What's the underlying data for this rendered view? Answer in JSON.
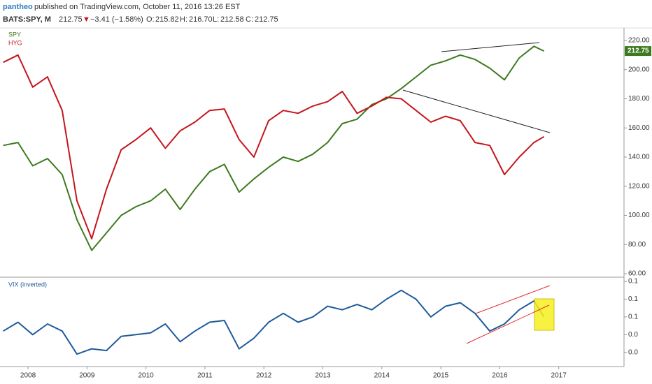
{
  "header": {
    "user": "pantheo",
    "published": "published on TradingView.com, October 11, 2016 13:26 EST",
    "symbol": "BATS:SPY, M",
    "price": "212.75",
    "arrow": "▼",
    "change": "−3.41 (−1.58%)",
    "open_label": "O:",
    "open": "215.82",
    "high_label": "H:",
    "high": "216.70",
    "low_label": "L:",
    "low": "212.58",
    "close_label": "C:",
    "close": "212.75"
  },
  "chart_data": [
    {
      "type": "line",
      "x": [
        2007.58,
        2007.83,
        2008.08,
        2008.33,
        2008.58,
        2008.83,
        2009.08,
        2009.33,
        2009.58,
        2009.83,
        2010.08,
        2010.33,
        2010.58,
        2010.83,
        2011.08,
        2011.33,
        2011.58,
        2011.83,
        2012.08,
        2012.33,
        2012.58,
        2012.83,
        2013.08,
        2013.33,
        2013.58,
        2013.83,
        2014.08,
        2014.33,
        2014.58,
        2014.83,
        2015.08,
        2015.33,
        2015.58,
        2015.83,
        2016.08,
        2016.33,
        2016.58,
        2016.75
      ],
      "series": [
        {
          "name": "SPY",
          "color": "#3d7a1f",
          "values": [
            148,
            150,
            134,
            139,
            128,
            97,
            76,
            88,
            100,
            106,
            110,
            118,
            104,
            118,
            130,
            135,
            116,
            125,
            133,
            140,
            137,
            142,
            150,
            163,
            166,
            176,
            180,
            187,
            195,
            203,
            206,
            210,
            207,
            201,
            193,
            208,
            216,
            212.75
          ]
        },
        {
          "name": "HYG",
          "color": "#c4161c",
          "values": [
            205,
            210,
            188,
            195,
            172,
            110,
            84,
            118,
            145,
            152,
            160,
            146,
            158,
            164,
            172,
            173,
            152,
            140,
            165,
            172,
            170,
            175,
            178,
            185,
            170,
            175,
            181,
            180,
            172,
            164,
            168,
            165,
            150,
            148,
            128,
            140,
            150,
            154
          ]
        }
      ],
      "xlim": [
        2007.525,
        2018.107
      ],
      "ylim": [
        57.6,
        228.6
      ],
      "yticks": [
        {
          "value": 60,
          "label": "60.00"
        },
        {
          "value": 80,
          "label": "80.00"
        },
        {
          "value": 100,
          "label": "100.00"
        },
        {
          "value": 120,
          "label": "120.00"
        },
        {
          "value": 140,
          "label": "140.00"
        },
        {
          "value": 160,
          "label": "160.00"
        },
        {
          "value": 180,
          "label": "180.00"
        },
        {
          "value": 200,
          "label": "200.00"
        },
        {
          "value": 220,
          "label": "220.00"
        }
      ],
      "last_value_label": "212.75",
      "grid": false
    },
    {
      "type": "line",
      "x": [
        2007.58,
        2007.83,
        2008.08,
        2008.33,
        2008.58,
        2008.83,
        2009.08,
        2009.33,
        2009.58,
        2009.83,
        2010.08,
        2010.33,
        2010.58,
        2010.83,
        2011.08,
        2011.33,
        2011.58,
        2011.83,
        2012.08,
        2012.33,
        2012.58,
        2012.83,
        2013.08,
        2013.33,
        2013.58,
        2013.83,
        2014.08,
        2014.33,
        2014.58,
        2014.83,
        2015.08,
        2015.33,
        2015.58,
        2015.83,
        2016.08,
        2016.33,
        2016.58,
        2016.75
      ],
      "series": [
        {
          "name": "VIX (inverted)",
          "color": "#1f5b99",
          "values": [
            0.044,
            0.054,
            0.04,
            0.052,
            0.044,
            0.018,
            0.024,
            0.022,
            0.038,
            0.04,
            0.042,
            0.052,
            0.032,
            0.044,
            0.054,
            0.056,
            0.024,
            0.036,
            0.054,
            0.064,
            0.054,
            0.06,
            0.072,
            0.068,
            0.074,
            0.068,
            0.08,
            0.09,
            0.08,
            0.06,
            0.072,
            0.076,
            0.064,
            0.044,
            0.052,
            0.068,
            0.078,
            0.06
          ]
        }
      ],
      "xlim": [
        2007.525,
        2018.107
      ],
      "ylim": [
        0.004,
        0.104
      ],
      "yticks": [
        {
          "value": 0.1,
          "label": "0.1"
        },
        {
          "value": 0.08,
          "label": "0.1"
        },
        {
          "value": 0.06,
          "label": "0.1"
        },
        {
          "value": 0.04,
          "label": "0.0"
        },
        {
          "value": 0.02,
          "label": "0.0"
        }
      ],
      "xticks": [
        2008,
        2009,
        2010,
        2011,
        2012,
        2013,
        2014,
        2015,
        2016,
        2017
      ],
      "grid": false
    }
  ]
}
